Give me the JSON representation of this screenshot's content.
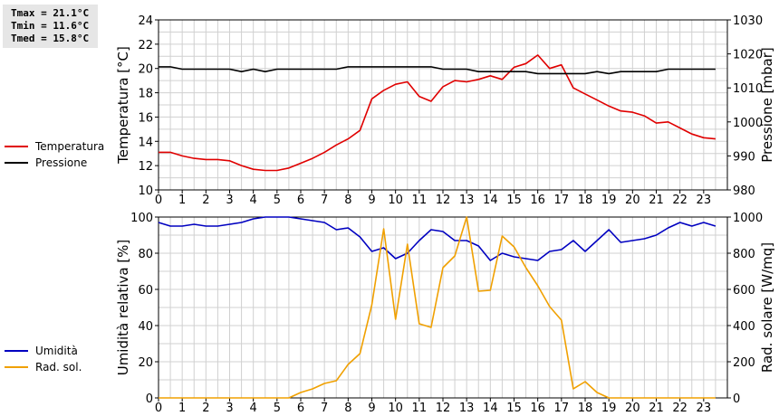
{
  "stats": {
    "tmax": "Tmax = 21.1°C",
    "tmin": "Tmin = 11.6°C",
    "tmed": "Tmed = 15.8°C"
  },
  "colors": {
    "temperature": "#e00000",
    "pressure": "#000000",
    "humidity": "#0000c0",
    "solar": "#f0a000",
    "grid": "#d0d0d0"
  },
  "legend_top": [
    {
      "label": "Temperatura",
      "color_key": "temperature"
    },
    {
      "label": "Pressione",
      "color_key": "pressure"
    }
  ],
  "legend_bottom": [
    {
      "label": "Umidità",
      "color_key": "humidity"
    },
    {
      "label": "Rad. sol.",
      "color_key": "solar"
    }
  ],
  "chart_data": [
    {
      "type": "line",
      "ylabel": "Temperatura [°C]",
      "y2label": "Pressione [mbar]",
      "xlim": [
        0,
        24
      ],
      "ylim": [
        10,
        24
      ],
      "y2lim": [
        980,
        1030
      ],
      "grid": true,
      "x_ticks": [
        0,
        1,
        2,
        3,
        4,
        5,
        6,
        7,
        8,
        9,
        10,
        11,
        12,
        13,
        14,
        15,
        16,
        17,
        18,
        19,
        20,
        21,
        22,
        23
      ],
      "y_ticks": [
        10,
        12,
        14,
        16,
        18,
        20,
        22,
        24
      ],
      "y2_ticks": [
        980,
        990,
        1000,
        1010,
        1020,
        1030
      ],
      "series": [
        {
          "name": "Temperatura",
          "axis": "left",
          "color_key": "temperature",
          "x": [
            0,
            0.5,
            1,
            1.5,
            2,
            2.5,
            3,
            3.5,
            4,
            4.5,
            5,
            5.5,
            6,
            6.5,
            7,
            7.5,
            8,
            8.5,
            9,
            9.5,
            10,
            10.5,
            11,
            11.5,
            12,
            12.5,
            13,
            13.5,
            14,
            14.5,
            15,
            15.5,
            16,
            16.5,
            17,
            17.5,
            18,
            18.5,
            19,
            19.5,
            20,
            20.5,
            21,
            21.5,
            22,
            22.5,
            23,
            23.5
          ],
          "y": [
            13.1,
            13.1,
            12.8,
            12.6,
            12.5,
            12.5,
            12.4,
            12.0,
            11.7,
            11.6,
            11.6,
            11.8,
            12.2,
            12.6,
            13.1,
            13.7,
            14.2,
            14.9,
            17.5,
            18.2,
            18.7,
            18.9,
            17.7,
            17.3,
            18.5,
            19.0,
            18.9,
            19.1,
            19.4,
            19.1,
            20.1,
            20.4,
            21.1,
            20.0,
            20.3,
            18.4,
            17.9,
            17.4,
            16.9,
            16.5,
            16.4,
            16.1,
            15.5,
            15.6,
            15.1,
            14.6,
            14.3,
            14.2
          ]
        },
        {
          "name": "Pressione",
          "axis": "right",
          "color_key": "pressure",
          "x": [
            0,
            0.5,
            1,
            1.5,
            2,
            2.5,
            3,
            3.5,
            4,
            4.5,
            5,
            5.5,
            6,
            6.5,
            7,
            7.5,
            8,
            8.5,
            9,
            9.5,
            10,
            10.5,
            11,
            11.5,
            12,
            12.5,
            13,
            13.5,
            14,
            14.5,
            15,
            15.5,
            16,
            16.5,
            17,
            17.5,
            18,
            18.5,
            19,
            19.5,
            20,
            20.5,
            21,
            21.5,
            22,
            22.5,
            23,
            23.5
          ],
          "y": [
            1016.2,
            1016.2,
            1015.5,
            1015.5,
            1015.5,
            1015.5,
            1015.5,
            1014.8,
            1015.5,
            1014.8,
            1015.5,
            1015.5,
            1015.5,
            1015.5,
            1015.5,
            1015.5,
            1016.2,
            1016.2,
            1016.2,
            1016.2,
            1016.2,
            1016.2,
            1016.2,
            1016.2,
            1015.5,
            1015.5,
            1015.5,
            1014.8,
            1014.8,
            1014.8,
            1014.8,
            1014.8,
            1014.2,
            1014.2,
            1014.2,
            1014.2,
            1014.2,
            1014.8,
            1014.2,
            1014.8,
            1014.8,
            1014.8,
            1014.8,
            1015.5,
            1015.5,
            1015.5,
            1015.5,
            1015.5
          ]
        }
      ]
    },
    {
      "type": "line",
      "ylabel": "Umidità relativa [%]",
      "y2label": "Rad. solare [W/mq]",
      "xlim": [
        0,
        24
      ],
      "ylim": [
        0,
        100
      ],
      "y2lim": [
        0,
        1000
      ],
      "grid": true,
      "x_ticks": [
        0,
        1,
        2,
        3,
        4,
        5,
        6,
        7,
        8,
        9,
        10,
        11,
        12,
        13,
        14,
        15,
        16,
        17,
        18,
        19,
        20,
        21,
        22,
        23
      ],
      "y_ticks": [
        0,
        20,
        40,
        60,
        80,
        100
      ],
      "y2_ticks": [
        0,
        200,
        400,
        600,
        800,
        1000
      ],
      "series": [
        {
          "name": "Umidità",
          "axis": "left",
          "color_key": "humidity",
          "x": [
            0,
            0.5,
            1,
            1.5,
            2,
            2.5,
            3,
            3.5,
            4,
            4.5,
            5,
            5.5,
            6,
            6.5,
            7,
            7.5,
            8,
            8.5,
            9,
            9.5,
            10,
            10.5,
            11,
            11.5,
            12,
            12.5,
            13,
            13.5,
            14,
            14.5,
            15,
            15.5,
            16,
            16.5,
            17,
            17.5,
            18,
            18.5,
            19,
            19.5,
            20,
            20.5,
            21,
            21.5,
            22,
            22.5,
            23,
            23.5
          ],
          "y": [
            97,
            95,
            95,
            96,
            95,
            95,
            96,
            97,
            99,
            100,
            100,
            100,
            99,
            98,
            97,
            93,
            94,
            89,
            81,
            83,
            77,
            80,
            87,
            93,
            92,
            87,
            87,
            84,
            76,
            80,
            78,
            77,
            76,
            81,
            82,
            87,
            81,
            87,
            93,
            86,
            87,
            88,
            90,
            94,
            97,
            95,
            97,
            95
          ]
        },
        {
          "name": "Rad. sol.",
          "axis": "right",
          "color_key": "solar",
          "x": [
            0,
            0.5,
            1,
            1.5,
            2,
            2.5,
            3,
            3.5,
            4,
            4.5,
            5,
            5.5,
            6,
            6.5,
            7,
            7.5,
            8,
            8.5,
            9,
            9.5,
            10,
            10.5,
            11,
            11.5,
            12,
            12.5,
            13,
            13.5,
            14,
            14.5,
            15,
            15.5,
            16,
            16.5,
            17,
            17.5,
            18,
            18.5,
            19,
            19.5,
            20,
            20.5,
            21,
            21.5,
            22,
            22.5,
            23,
            23.5
          ],
          "y": [
            0,
            0,
            0,
            0,
            0,
            0,
            0,
            0,
            0,
            0,
            0,
            0,
            30,
            50,
            80,
            95,
            185,
            245,
            515,
            935,
            435,
            850,
            410,
            390,
            720,
            785,
            1000,
            590,
            595,
            895,
            835,
            720,
            620,
            505,
            430,
            50,
            90,
            30,
            0,
            0,
            0,
            0,
            0,
            0,
            0,
            0,
            0,
            0
          ]
        }
      ]
    }
  ]
}
